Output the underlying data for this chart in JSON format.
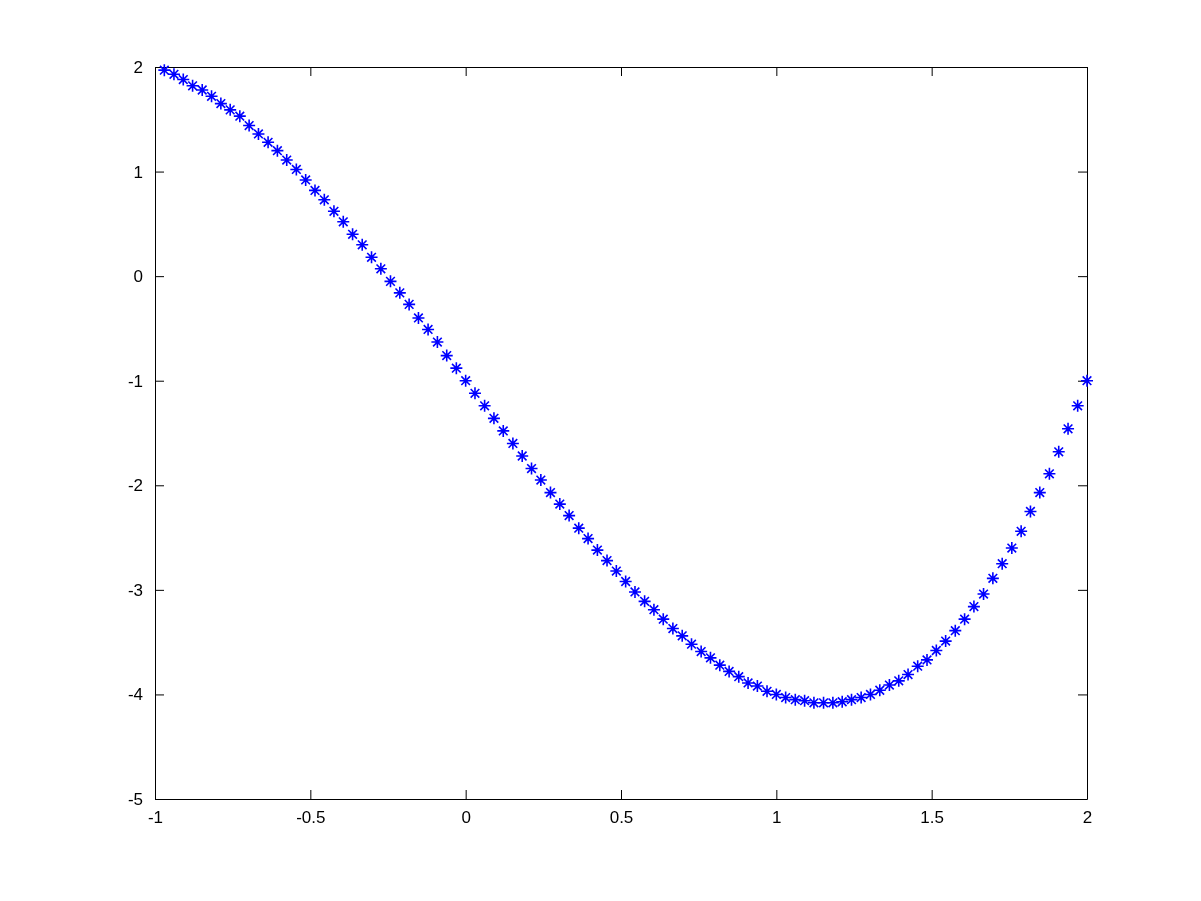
{
  "chart_data": {
    "type": "scatter",
    "marker": "cross",
    "grid": false,
    "xlim": [
      -1,
      2
    ],
    "xticks": [
      -1,
      -0.5,
      0,
      0.5,
      1,
      1.5,
      2
    ],
    "ylim": [
      -5,
      2
    ],
    "yticks": [
      -5,
      -4,
      -3,
      -2,
      -1,
      0,
      1,
      2
    ],
    "series": [
      {
        "color": "#0000ff",
        "x": [
          -0.97,
          -0.939,
          -0.909,
          -0.879,
          -0.848,
          -0.818,
          -0.788,
          -0.758,
          -0.727,
          -0.697,
          -0.667,
          -0.636,
          -0.606,
          -0.576,
          -0.545,
          -0.515,
          -0.485,
          -0.455,
          -0.424,
          -0.394,
          -0.364,
          -0.333,
          -0.303,
          -0.273,
          -0.242,
          -0.212,
          -0.182,
          -0.152,
          -0.121,
          -0.091,
          -0.061,
          -0.03,
          0,
          0.03,
          0.061,
          0.091,
          0.121,
          0.152,
          0.182,
          0.212,
          0.242,
          0.273,
          0.303,
          0.333,
          0.364,
          0.394,
          0.424,
          0.455,
          0.485,
          0.515,
          0.545,
          0.576,
          0.606,
          0.636,
          0.667,
          0.697,
          0.727,
          0.758,
          0.788,
          0.818,
          0.848,
          0.879,
          0.909,
          0.939,
          0.97,
          1.0,
          1.03,
          1.061,
          1.091,
          1.121,
          1.152,
          1.182,
          1.212,
          1.242,
          1.273,
          1.303,
          1.333,
          1.364,
          1.394,
          1.424,
          1.455,
          1.485,
          1.515,
          1.545,
          1.576,
          1.606,
          1.636,
          1.667,
          1.697,
          1.727,
          1.758,
          1.788,
          1.818,
          1.848,
          1.879,
          1.909,
          1.939,
          1.97,
          2.0
        ],
        "values": [
          1.97,
          1.93,
          1.88,
          1.82,
          1.78,
          1.72,
          1.65,
          1.59,
          1.53,
          1.44,
          1.36,
          1.28,
          1.2,
          1.11,
          1.02,
          0.92,
          0.82,
          0.73,
          0.62,
          0.52,
          0.4,
          0.3,
          0.18,
          0.07,
          -0.05,
          -0.16,
          -0.27,
          -0.4,
          -0.51,
          -0.63,
          -0.76,
          -0.88,
          -1.0,
          -1.12,
          -1.24,
          -1.36,
          -1.48,
          -1.6,
          -1.72,
          -1.84,
          -1.95,
          -2.07,
          -2.18,
          -2.29,
          -2.41,
          -2.51,
          -2.62,
          -2.72,
          -2.82,
          -2.92,
          -3.02,
          -3.11,
          -3.19,
          -3.28,
          -3.37,
          -3.44,
          -3.52,
          -3.59,
          -3.65,
          -3.72,
          -3.78,
          -3.83,
          -3.89,
          -3.92,
          -3.97,
          -4.0,
          -4.03,
          -4.05,
          -4.06,
          -4.08,
          -4.08,
          -4.08,
          -4.07,
          -4.05,
          -4.03,
          -4.0,
          -3.96,
          -3.91,
          -3.87,
          -3.81,
          -3.73,
          -3.67,
          -3.58,
          -3.49,
          -3.39,
          -3.28,
          -3.16,
          -3.04,
          -2.89,
          -2.75,
          -2.6,
          -2.44,
          -2.25,
          -2.07,
          -1.89,
          -1.68,
          -1.46,
          -1.24,
          -1.0
        ]
      }
    ]
  }
}
